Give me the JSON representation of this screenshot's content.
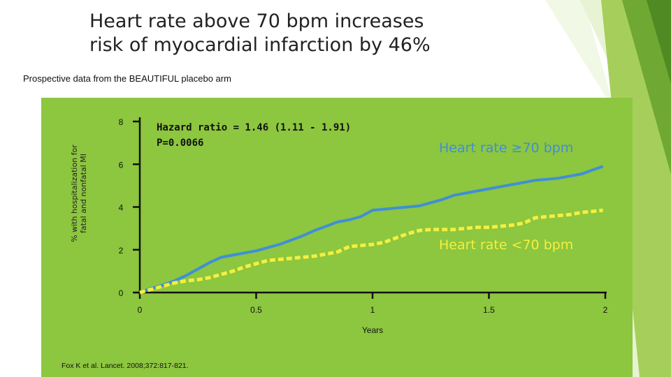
{
  "header": {
    "title_line1": "Heart rate above 70 bpm increases",
    "title_line2": "risk of myocardial infarction by 46%",
    "subtitle": "Prospective data from the BEAUTIFUL placebo arm"
  },
  "annotation": {
    "hazard_ratio": "Hazard ratio = 1.46 (1.11 - 1.91)",
    "p_value": "P=0.0066"
  },
  "citation": "Fox K et al. Lancet. 2008;372:817-821.",
  "colors": {
    "background_green": "#8dc63f",
    "high_hr_line": "#3f8fd6",
    "low_hr_line": "#f4ef3f"
  },
  "chart_data": {
    "type": "line",
    "xlabel": "Years",
    "ylabel_line1": "% with hospitalization for",
    "ylabel_line2": "fatal and nonfatal MI",
    "xlim": [
      0,
      2
    ],
    "ylim": [
      0,
      8
    ],
    "x_ticks": [
      "0",
      "0.5",
      "1",
      "1.5",
      "2"
    ],
    "y_ticks": [
      "0",
      "2",
      "4",
      "6",
      "8"
    ],
    "series": [
      {
        "name": "Heart rate ≥70 bpm",
        "x": [
          0,
          0.05,
          0.1,
          0.15,
          0.2,
          0.25,
          0.3,
          0.35,
          0.4,
          0.45,
          0.5,
          0.55,
          0.6,
          0.65,
          0.7,
          0.75,
          0.8,
          0.85,
          0.9,
          0.95,
          1.0,
          1.05,
          1.1,
          1.15,
          1.2,
          1.25,
          1.3,
          1.35,
          1.4,
          1.45,
          1.5,
          1.55,
          1.6,
          1.65,
          1.7,
          1.75,
          1.8,
          1.85,
          1.9,
          1.95,
          1.99
        ],
        "values": [
          0,
          0.2,
          0.35,
          0.55,
          0.8,
          1.1,
          1.4,
          1.65,
          1.75,
          1.85,
          1.95,
          2.1,
          2.25,
          2.45,
          2.65,
          2.9,
          3.1,
          3.3,
          3.4,
          3.55,
          3.85,
          3.9,
          3.95,
          4.0,
          4.05,
          4.2,
          4.35,
          4.55,
          4.65,
          4.75,
          4.85,
          4.95,
          5.05,
          5.15,
          5.25,
          5.3,
          5.35,
          5.45,
          5.55,
          5.75,
          5.9
        ]
      },
      {
        "name": "Heart rate <70 bpm",
        "x": [
          0,
          0.05,
          0.1,
          0.15,
          0.2,
          0.25,
          0.3,
          0.35,
          0.4,
          0.45,
          0.5,
          0.55,
          0.6,
          0.65,
          0.7,
          0.75,
          0.8,
          0.85,
          0.9,
          0.95,
          1.0,
          1.05,
          1.1,
          1.15,
          1.2,
          1.25,
          1.3,
          1.35,
          1.4,
          1.45,
          1.5,
          1.55,
          1.6,
          1.65,
          1.7,
          1.75,
          1.8,
          1.85,
          1.9,
          1.95,
          1.99
        ],
        "values": [
          0,
          0.15,
          0.3,
          0.45,
          0.55,
          0.6,
          0.7,
          0.85,
          1.0,
          1.2,
          1.35,
          1.5,
          1.55,
          1.6,
          1.65,
          1.7,
          1.8,
          1.9,
          2.15,
          2.2,
          2.25,
          2.35,
          2.55,
          2.75,
          2.9,
          2.95,
          2.95,
          2.95,
          3.0,
          3.05,
          3.05,
          3.1,
          3.15,
          3.25,
          3.5,
          3.55,
          3.6,
          3.65,
          3.75,
          3.8,
          3.85
        ]
      }
    ]
  }
}
